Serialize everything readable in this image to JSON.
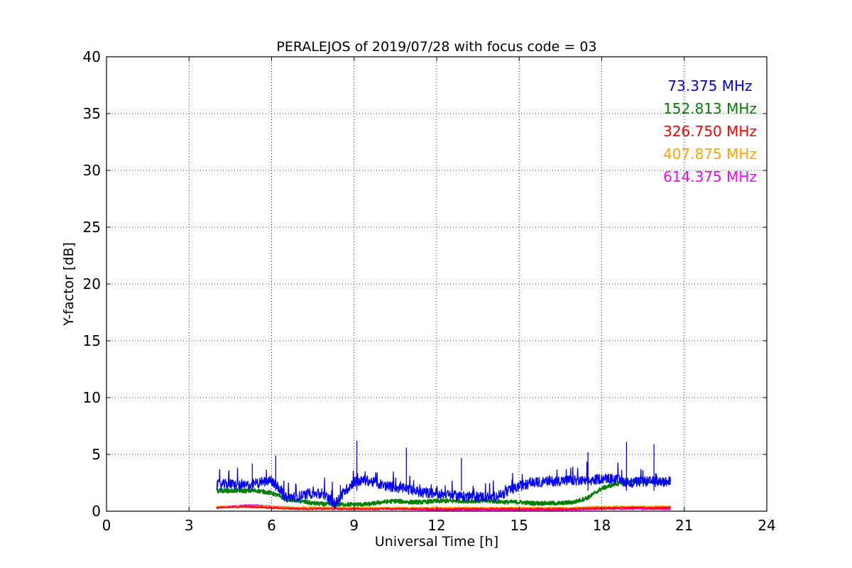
{
  "chart_data": {
    "type": "line",
    "title": "PERALEJOS of 2019/07/28 with focus code = 03",
    "xlabel": "Universal Time [h]",
    "ylabel": "Y-factor [dB]",
    "xlim": [
      0,
      24
    ],
    "ylim": [
      0,
      40
    ],
    "xticks": [
      "0",
      "3",
      "6",
      "9",
      "12",
      "15",
      "18",
      "21",
      "24"
    ],
    "yticks": [
      "0",
      "5",
      "10",
      "15",
      "20",
      "25",
      "30",
      "35",
      "40"
    ],
    "grid": true,
    "legend_position": "top-right",
    "series": [
      {
        "name": "73.375 MHz",
        "color": "#0000ff",
        "points": [
          [
            4.0,
            2.3
          ],
          [
            4.5,
            2.4
          ],
          [
            5.0,
            2.2
          ],
          [
            5.5,
            2.5
          ],
          [
            6.0,
            2.7
          ],
          [
            6.2,
            2.3
          ],
          [
            6.5,
            1.2
          ],
          [
            7.0,
            1.3
          ],
          [
            7.5,
            1.6
          ],
          [
            8.0,
            1.3
          ],
          [
            8.3,
            0.6
          ],
          [
            8.6,
            1.6
          ],
          [
            9.0,
            2.6
          ],
          [
            9.5,
            2.7
          ],
          [
            10.0,
            2.3
          ],
          [
            10.5,
            2.1
          ],
          [
            11.0,
            1.9
          ],
          [
            11.5,
            1.6
          ],
          [
            12.0,
            1.6
          ],
          [
            12.5,
            1.4
          ],
          [
            13.0,
            1.3
          ],
          [
            13.5,
            1.3
          ],
          [
            14.0,
            1.2
          ],
          [
            14.5,
            1.6
          ],
          [
            15.0,
            2.2
          ],
          [
            15.5,
            2.5
          ],
          [
            16.0,
            2.6
          ],
          [
            16.5,
            2.7
          ],
          [
            17.0,
            2.7
          ],
          [
            17.5,
            2.6
          ],
          [
            18.0,
            2.9
          ],
          [
            18.5,
            2.8
          ],
          [
            19.0,
            2.5
          ],
          [
            19.5,
            2.6
          ],
          [
            20.0,
            2.6
          ],
          [
            20.5,
            2.6
          ]
        ],
        "peaks": [
          [
            6.15,
            4.9
          ],
          [
            9.1,
            6.2
          ],
          [
            10.9,
            5.6
          ],
          [
            12.9,
            4.7
          ],
          [
            18.9,
            6.1
          ],
          [
            19.9,
            5.9
          ],
          [
            17.5,
            5.2
          ],
          [
            5.3,
            4.2
          ]
        ]
      },
      {
        "name": "152.813 MHz",
        "color": "#008000",
        "points": [
          [
            4.0,
            1.8
          ],
          [
            4.5,
            1.8
          ],
          [
            5.0,
            1.8
          ],
          [
            5.5,
            1.8
          ],
          [
            6.0,
            1.6
          ],
          [
            6.5,
            1.1
          ],
          [
            7.0,
            0.9
          ],
          [
            7.5,
            0.7
          ],
          [
            8.0,
            0.6
          ],
          [
            8.5,
            0.6
          ],
          [
            9.0,
            0.6
          ],
          [
            9.5,
            0.6
          ],
          [
            10.0,
            0.8
          ],
          [
            10.5,
            0.9
          ],
          [
            11.0,
            0.8
          ],
          [
            11.5,
            0.8
          ],
          [
            12.0,
            0.9
          ],
          [
            12.5,
            0.9
          ],
          [
            13.0,
            0.9
          ],
          [
            13.5,
            0.9
          ],
          [
            14.0,
            0.9
          ],
          [
            14.5,
            0.8
          ],
          [
            15.0,
            0.8
          ],
          [
            15.5,
            0.7
          ],
          [
            16.0,
            0.7
          ],
          [
            16.5,
            0.7
          ],
          [
            17.0,
            0.8
          ],
          [
            17.5,
            1.2
          ],
          [
            18.0,
            2.0
          ],
          [
            18.5,
            2.4
          ],
          [
            19.0,
            2.6
          ],
          [
            19.5,
            2.6
          ],
          [
            20.0,
            2.6
          ],
          [
            20.5,
            2.5
          ]
        ],
        "peaks": []
      },
      {
        "name": "326.750 MHz",
        "color": "#ff0000",
        "points": [
          [
            4.0,
            0.3
          ],
          [
            5.0,
            0.4
          ],
          [
            6.0,
            0.3
          ],
          [
            7.0,
            0.2
          ],
          [
            8.0,
            0.2
          ],
          [
            9.0,
            0.2
          ],
          [
            10.0,
            0.2
          ],
          [
            11.0,
            0.2
          ],
          [
            12.0,
            0.2
          ],
          [
            13.0,
            0.2
          ],
          [
            14.0,
            0.2
          ],
          [
            15.0,
            0.2
          ],
          [
            16.0,
            0.2
          ],
          [
            17.0,
            0.2
          ],
          [
            18.0,
            0.3
          ],
          [
            19.0,
            0.3
          ],
          [
            20.0,
            0.3
          ],
          [
            20.5,
            0.3
          ]
        ],
        "peaks": []
      },
      {
        "name": "407.875 MHz",
        "color": "#ffa500",
        "points": [
          [
            4.0,
            0.4
          ],
          [
            5.0,
            0.4
          ],
          [
            6.0,
            0.4
          ],
          [
            7.0,
            0.3
          ],
          [
            8.0,
            0.3
          ],
          [
            9.0,
            0.3
          ],
          [
            10.0,
            0.3
          ],
          [
            11.0,
            0.3
          ],
          [
            12.0,
            0.3
          ],
          [
            13.0,
            0.3
          ],
          [
            14.0,
            0.3
          ],
          [
            15.0,
            0.3
          ],
          [
            16.0,
            0.3
          ],
          [
            17.0,
            0.3
          ],
          [
            18.0,
            0.4
          ],
          [
            19.0,
            0.4
          ],
          [
            20.0,
            0.4
          ],
          [
            20.5,
            0.4
          ]
        ],
        "peaks": []
      },
      {
        "name": "614.375 MHz",
        "color": "#ff00ff",
        "points": [
          [
            4.0,
            0.3
          ],
          [
            4.5,
            0.4
          ],
          [
            5.0,
            0.5
          ],
          [
            5.5,
            0.5
          ],
          [
            6.0,
            0.4
          ],
          [
            7.0,
            0.3
          ],
          [
            8.0,
            0.3
          ],
          [
            9.0,
            0.2
          ],
          [
            10.0,
            0.2
          ],
          [
            11.0,
            0.2
          ],
          [
            12.0,
            0.1
          ],
          [
            13.0,
            0.1
          ],
          [
            14.0,
            0.1
          ],
          [
            15.0,
            0.1
          ],
          [
            16.0,
            0.1
          ],
          [
            17.0,
            0.1
          ],
          [
            18.0,
            0.2
          ],
          [
            19.0,
            0.2
          ],
          [
            20.0,
            0.2
          ],
          [
            20.5,
            0.2
          ]
        ],
        "peaks": []
      }
    ]
  }
}
